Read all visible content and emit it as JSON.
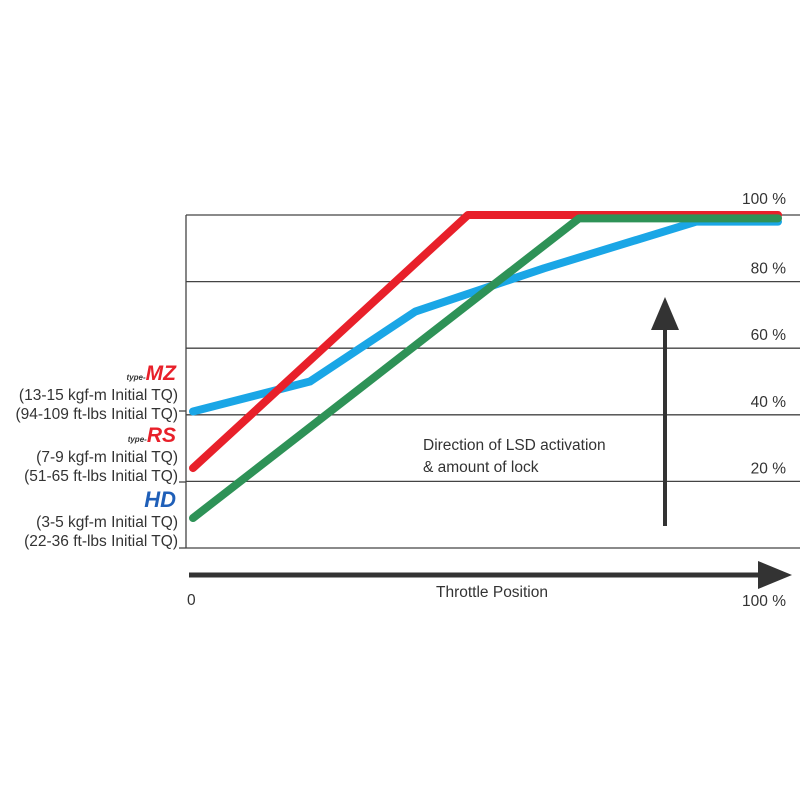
{
  "chart_data": {
    "type": "line",
    "xlabel": "Throttle Position",
    "x_tick_labels": [
      "0",
      "100 %"
    ],
    "y_tick_labels": [
      "20 %",
      "40 %",
      "60 %",
      "80 %",
      "100 %"
    ],
    "xlim": [
      0,
      100
    ],
    "ylim": [
      0,
      100
    ],
    "grid": true,
    "annotation": [
      "Direction of LSD activation",
      "& amount of lock"
    ],
    "series": [
      {
        "key": "MZ",
        "color": "#1aa6e6",
        "x": [
          0,
          20,
          38,
          60,
          86,
          100
        ],
        "y": [
          41,
          50,
          71,
          84,
          98,
          98
        ]
      },
      {
        "key": "RS",
        "color": "#e8202a",
        "x": [
          0,
          47,
          100
        ],
        "y": [
          24,
          100,
          100
        ]
      },
      {
        "key": "HD",
        "color": "#2e9257",
        "x": [
          0,
          66,
          100
        ],
        "y": [
          9,
          99,
          99
        ]
      }
    ],
    "products": [
      {
        "logo_prefix": "type-",
        "logo": "MZ",
        "logo_color": "#e8202a",
        "line1": "(13-15 kgf-m Initial TQ)",
        "line2": "(94-109 ft-lbs Initial TQ)"
      },
      {
        "logo_prefix": "type-",
        "logo": "RS",
        "logo_color": "#e8202a",
        "line1": "(7-9 kgf-m Initial TQ)",
        "line2": "(51-65 ft-lbs Initial TQ)"
      },
      {
        "logo_prefix": "",
        "logo": "HD",
        "logo_color": "#1f5fb8",
        "line1": "(3-5 kgf-m Initial TQ)",
        "line2": "(22-36 ft-lbs Initial TQ)"
      }
    ]
  }
}
